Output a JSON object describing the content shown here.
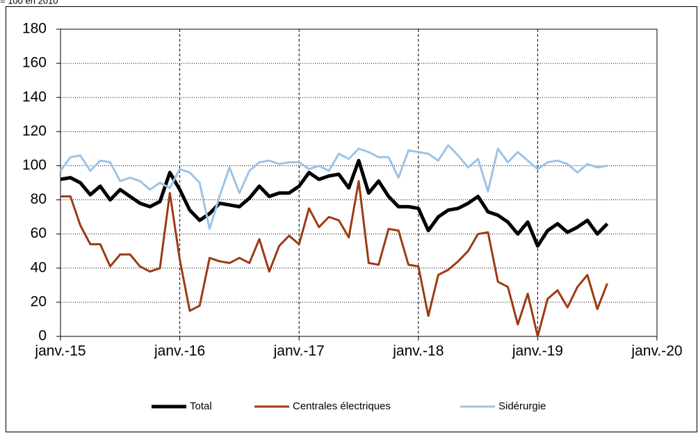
{
  "chart_data": {
    "type": "line",
    "note": "= 100 en 2010",
    "x": [
      "2015-01",
      "2015-02",
      "2015-03",
      "2015-04",
      "2015-05",
      "2015-06",
      "2015-07",
      "2015-08",
      "2015-09",
      "2015-10",
      "2015-11",
      "2015-12",
      "2016-01",
      "2016-02",
      "2016-03",
      "2016-04",
      "2016-05",
      "2016-06",
      "2016-07",
      "2016-08",
      "2016-09",
      "2016-10",
      "2016-11",
      "2016-12",
      "2017-01",
      "2017-02",
      "2017-03",
      "2017-04",
      "2017-05",
      "2017-06",
      "2017-07",
      "2017-08",
      "2017-09",
      "2017-10",
      "2017-11",
      "2017-12",
      "2018-01",
      "2018-02",
      "2018-03",
      "2018-04",
      "2018-05",
      "2018-06",
      "2018-07",
      "2018-08",
      "2018-09",
      "2018-10",
      "2018-11",
      "2018-12",
      "2019-01",
      "2019-02",
      "2019-03",
      "2019-04",
      "2019-05",
      "2019-06",
      "2019-07",
      "2019-08"
    ],
    "series": [
      {
        "name": "Total",
        "color": "#000000",
        "width": 5,
        "values": [
          92,
          93,
          90,
          83,
          88,
          80,
          86,
          82,
          78,
          76,
          79,
          96,
          86,
          74,
          68,
          72,
          78,
          77,
          76,
          81,
          88,
          82,
          84,
          84,
          88,
          96,
          92,
          94,
          95,
          87,
          103,
          84,
          91,
          82,
          76,
          76,
          75,
          62,
          70,
          74,
          75,
          78,
          82,
          73,
          71,
          67,
          60,
          67,
          53,
          62,
          66,
          61,
          64,
          68,
          60,
          66
        ]
      },
      {
        "name": "Centrales électriques",
        "color": "#9c3a12",
        "width": 3,
        "values": [
          82,
          82,
          65,
          54,
          54,
          41,
          48,
          48,
          41,
          38,
          40,
          84,
          45,
          15,
          18,
          46,
          44,
          43,
          46,
          43,
          57,
          38,
          53,
          59,
          54,
          75,
          64,
          70,
          68,
          58,
          91,
          43,
          42,
          63,
          62,
          42,
          41,
          12,
          36,
          39,
          44,
          50,
          60,
          61,
          32,
          29,
          7,
          25,
          0,
          22,
          27,
          17,
          29,
          36,
          16,
          31
        ]
      },
      {
        "name": "Sidérurgie",
        "color": "#9dc3e6",
        "width": 3,
        "values": [
          97,
          105,
          106,
          97,
          103,
          102,
          91,
          93,
          91,
          86,
          90,
          87,
          98,
          96,
          90,
          63,
          82,
          99,
          84,
          97,
          102,
          103,
          101,
          102,
          102,
          98,
          100,
          97,
          107,
          104,
          110,
          108,
          105,
          105,
          93,
          109,
          108,
          107,
          103,
          112,
          106,
          99,
          104,
          85,
          110,
          102,
          108,
          103,
          98,
          102,
          103,
          101,
          96,
          101,
          99,
          100
        ]
      }
    ],
    "xlim": [
      "2015-01",
      "2020-01"
    ],
    "xticks": [
      {
        "value": "2015-01",
        "label": "janv.-15"
      },
      {
        "value": "2016-01",
        "label": "janv.-16"
      },
      {
        "value": "2017-01",
        "label": "janv.-17"
      },
      {
        "value": "2018-01",
        "label": "janv.-18"
      },
      {
        "value": "2019-01",
        "label": "janv.-19"
      },
      {
        "value": "2020-01",
        "label": "janv.-20"
      }
    ],
    "ylim": [
      0,
      180
    ],
    "yticks": [
      0,
      20,
      40,
      60,
      80,
      100,
      120,
      140,
      160,
      180
    ],
    "grid": true,
    "legend": "bottom"
  }
}
